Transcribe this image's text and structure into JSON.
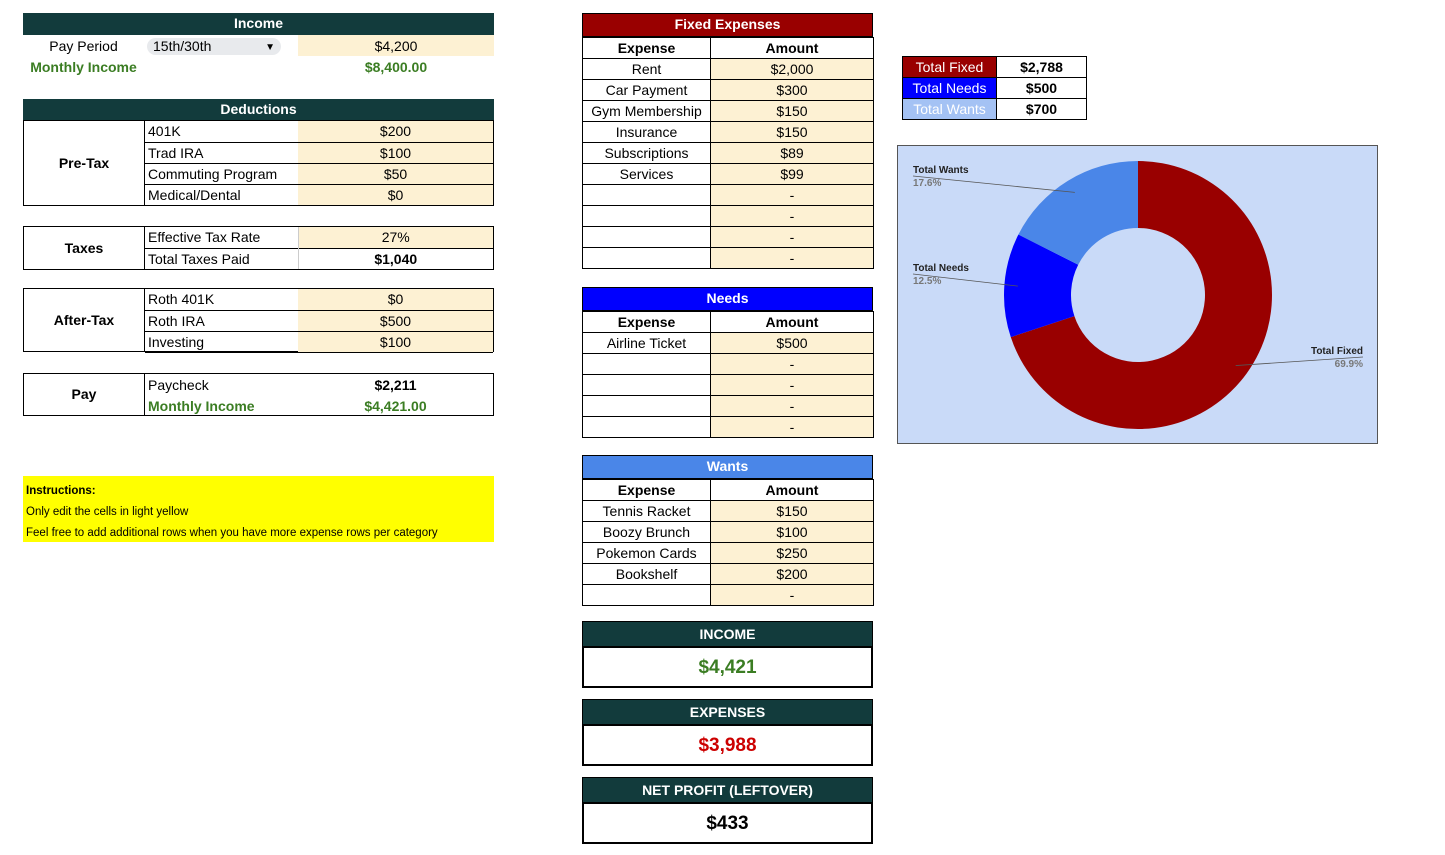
{
  "income": {
    "header": "Income",
    "pay_period_label": "Pay Period",
    "pay_period_value": "15th/30th",
    "pay_amount": "$4,200",
    "monthly_label": "Monthly Income",
    "monthly_value": "$8,400.00"
  },
  "deductions": {
    "header": "Deductions",
    "pretax": {
      "label": "Pre-Tax",
      "rows": [
        {
          "name": "401K",
          "value": "$200"
        },
        {
          "name": "Trad IRA",
          "value": "$100"
        },
        {
          "name": "Commuting Program",
          "value": "$50"
        },
        {
          "name": "Medical/Dental",
          "value": "$0"
        }
      ]
    },
    "taxes": {
      "label": "Taxes",
      "rate_label": "Effective Tax Rate",
      "rate_value": "27%",
      "paid_label": "Total Taxes Paid",
      "paid_value": "$1,040"
    },
    "aftertax": {
      "label": "After-Tax",
      "rows": [
        {
          "name": "Roth 401K",
          "value": "$0"
        },
        {
          "name": "Roth IRA",
          "value": "$500"
        },
        {
          "name": "Investing",
          "value": "$100"
        }
      ]
    },
    "pay": {
      "label": "Pay",
      "paycheck_label": "Paycheck",
      "paycheck_value": "$2,211",
      "monthly_label": "Monthly Income",
      "monthly_value": "$4,421.00"
    }
  },
  "instructions": {
    "title": "Instructions:",
    "line1": "Only edit the cells in light yellow",
    "line2": "Feel free to add additional rows when you have more expense rows per category"
  },
  "fixed": {
    "header": "Fixed Expenses",
    "col_expense": "Expense",
    "col_amount": "Amount",
    "rows": [
      {
        "name": "Rent",
        "value": "$2,000"
      },
      {
        "name": "Car Payment",
        "value": "$300"
      },
      {
        "name": "Gym Membership",
        "value": "$150"
      },
      {
        "name": "Insurance",
        "value": "$150"
      },
      {
        "name": "Subscriptions",
        "value": "$89"
      },
      {
        "name": "Services",
        "value": "$99"
      },
      {
        "name": "",
        "value": "-"
      },
      {
        "name": "",
        "value": "-"
      },
      {
        "name": "",
        "value": "-"
      },
      {
        "name": "",
        "value": "-"
      }
    ]
  },
  "needs": {
    "header": "Needs",
    "col_expense": "Expense",
    "col_amount": "Amount",
    "rows": [
      {
        "name": "Airline Ticket",
        "value": "$500"
      },
      {
        "name": "",
        "value": "-"
      },
      {
        "name": "",
        "value": "-"
      },
      {
        "name": "",
        "value": "-"
      },
      {
        "name": "",
        "value": "-"
      }
    ]
  },
  "wants": {
    "header": "Wants",
    "col_expense": "Expense",
    "col_amount": "Amount",
    "rows": [
      {
        "name": "Tennis Racket",
        "value": "$150"
      },
      {
        "name": "Boozy Brunch",
        "value": "$100"
      },
      {
        "name": "Pokemon Cards",
        "value": "$250"
      },
      {
        "name": "Bookshelf",
        "value": "$200"
      },
      {
        "name": "",
        "value": "-"
      }
    ]
  },
  "summary": {
    "income_label": "INCOME",
    "income_value": "$4,421",
    "expenses_label": "EXPENSES",
    "expenses_value": "$3,988",
    "net_label": "NET PROFIT (LEFTOVER)",
    "net_value": "$433"
  },
  "totals": [
    {
      "label": "Total Fixed",
      "value": "$2,788",
      "color": "#990000",
      "text_color": "#ffffff"
    },
    {
      "label": "Total Needs",
      "value": "$500",
      "color": "#0000ff",
      "text_color": "#ffffff"
    },
    {
      "label": "Total Wants",
      "value": "$700",
      "color": "#a4c2f4",
      "text_color": "#ffffff"
    }
  ],
  "colors": {
    "header_bg": "#123b3c",
    "fixed_header": "#990000",
    "needs_header": "#0000ff",
    "wants_header": "#4a86e8",
    "edit_cell": "#fdf1d3",
    "green_text": "#3b7d23",
    "expense_red": "#cc0000",
    "chart_bg": "#c9daf8"
  },
  "chart_data": {
    "type": "pie",
    "donut": true,
    "slices": [
      {
        "label": "Total Fixed",
        "value": 2788,
        "percent": "69.9%",
        "color": "#990000"
      },
      {
        "label": "Total Needs",
        "value": 500,
        "percent": "12.5%",
        "color": "#0000ff"
      },
      {
        "label": "Total Wants",
        "value": 700,
        "percent": "17.6%",
        "color": "#4a86e8"
      }
    ],
    "title": "",
    "legend": "none"
  }
}
